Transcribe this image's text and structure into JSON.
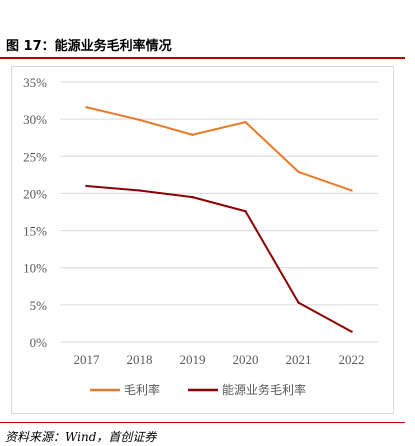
{
  "figure": {
    "title": "图 17：能源业务毛利率情况",
    "source": "资料来源：Wind，首创证券"
  },
  "colors": {
    "accent_rule": "#c00000",
    "series_gross_margin": "#e97a2b",
    "series_energy_margin": "#8b0000",
    "grid": "#d9d9d9",
    "tick_text": "#595959"
  },
  "chart_data": {
    "type": "line",
    "x": [
      "2017",
      "2018",
      "2019",
      "2020",
      "2021",
      "2022"
    ],
    "ylim": [
      0,
      35
    ],
    "yticks": [
      "0%",
      "5%",
      "10%",
      "15%",
      "20%",
      "25%",
      "30%",
      "35%"
    ],
    "ytick_values": [
      0,
      5,
      10,
      15,
      20,
      25,
      30,
      35
    ],
    "grid": true,
    "legend_position": "bottom",
    "series": [
      {
        "name": "毛利率",
        "color": "#e97a2b",
        "values": [
          31.6,
          29.9,
          27.9,
          29.6,
          22.9,
          20.4
        ]
      },
      {
        "name": "能源业务毛利率",
        "color": "#8b0000",
        "values": [
          21.0,
          20.4,
          19.5,
          17.6,
          5.3,
          1.4
        ]
      }
    ]
  }
}
